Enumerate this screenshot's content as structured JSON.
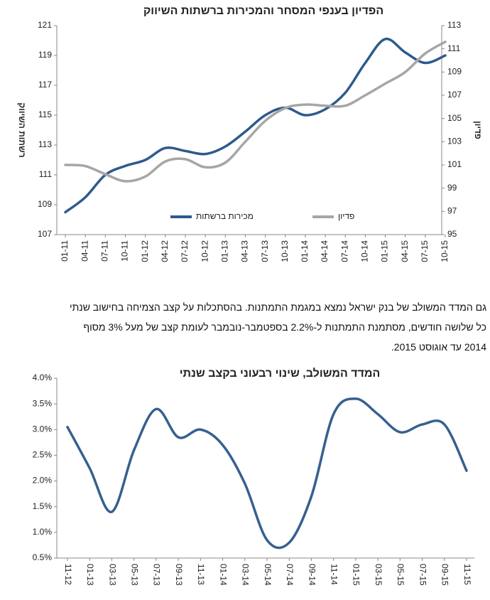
{
  "chart_data": [
    {
      "type": "line",
      "title": "הפדיון בענפי המסחר והמכירות ברשתות השיווק",
      "categories": [
        "01-11",
        "04-11",
        "07-11",
        "10-11",
        "01-12",
        "04-12",
        "07-12",
        "10-12",
        "01-13",
        "04-13",
        "07-13",
        "10-13",
        "01-14",
        "04-14",
        "07-14",
        "10-14",
        "01-15",
        "04-15",
        "07-15",
        "10-15"
      ],
      "series": [
        {
          "name": "מכירות ברשתות",
          "color": "#2e5a8c",
          "values": [
            108.5,
            109.5,
            111.0,
            111.6,
            112.0,
            112.8,
            112.6,
            112.4,
            112.9,
            113.9,
            115.0,
            115.5,
            115.0,
            115.4,
            116.5,
            118.5,
            120.1,
            119.2,
            118.5,
            119.0
          ]
        },
        {
          "name": "פדיון",
          "color": "#a6a6a6",
          "axis": "y2",
          "values": [
            101.0,
            100.9,
            100.2,
            99.6,
            100.0,
            101.3,
            101.5,
            100.8,
            101.2,
            103.0,
            104.8,
            105.9,
            106.2,
            106.1,
            106.1,
            107.0,
            108.0,
            109.0,
            110.6,
            111.6
          ]
        }
      ],
      "ylabel": "רשתות השיווק",
      "y2label": "פדיון",
      "ylim": [
        107,
        121
      ],
      "yticks": [
        107,
        109,
        111,
        113,
        115,
        117,
        119,
        121
      ],
      "y2lim": [
        95,
        113
      ],
      "y2ticks": [
        95,
        97,
        99,
        101,
        103,
        105,
        107,
        109,
        111,
        113
      ],
      "legend": "lower center"
    },
    {
      "type": "line",
      "title": "המדד המשולב, שינוי רבעוני בקצב שנתי",
      "categories": [
        "11-12",
        "01-13",
        "03-13",
        "05-13",
        "07-13",
        "09-13",
        "11-13",
        "01-14",
        "03-14",
        "05-14",
        "07-14",
        "09-14",
        "11-14",
        "01-15",
        "03-15",
        "05-15",
        "07-15",
        "09-15",
        "11-15"
      ],
      "values": [
        3.05,
        2.25,
        1.4,
        2.6,
        3.4,
        2.85,
        3.0,
        2.7,
        1.95,
        0.85,
        0.8,
        1.7,
        3.3,
        3.6,
        3.3,
        2.95,
        3.1,
        3.1,
        2.2
      ],
      "color": "#36608f",
      "ylim": [
        0.5,
        4
      ],
      "yticks": [
        {
          "value": 0.5,
          "label": "0.5%"
        },
        {
          "value": 1,
          "label": "1.0%"
        },
        {
          "value": 1.5,
          "label": "1.5%"
        },
        {
          "value": 2,
          "label": "2.0%"
        },
        {
          "value": 2.5,
          "label": "2.5%"
        },
        {
          "value": 3,
          "label": "3.0%"
        },
        {
          "value": 3.5,
          "label": "3.5%"
        },
        {
          "value": 4,
          "label": "4.0%"
        }
      ]
    }
  ],
  "text": {
    "lines": [
      "גם המדד המשולב של בנק ישראל נמצא במגמת התמתנות. בהסתכלות על קצב הצמיחה בחישוב שנתי",
      "כל שלושה חודשים, מסתמנת התמתנות ל-2.2% בספטמבר-נובמבר לעומת קצב של מעל 3% מסוף",
      "2014 עד אוגוסט 2015."
    ]
  }
}
